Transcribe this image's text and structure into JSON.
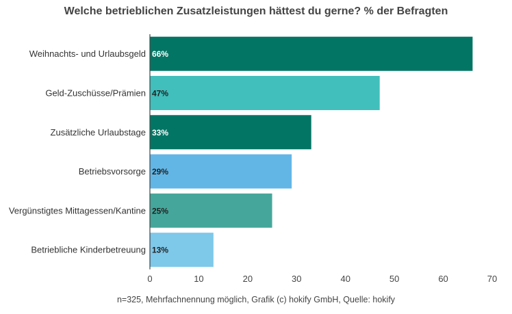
{
  "chart_data": {
    "type": "bar",
    "orientation": "horizontal",
    "title": "Welche betrieblichen Zusatzleistungen hättest du gerne? % der Befragten",
    "categories": [
      "Weihnachts- und Urlaubsgeld",
      "Geld-Zuschüsse/Prämien",
      "Zusätzliche Urlaubstage",
      "Betriebsvorsorge",
      "Vergünstigtes Mittagessen/Kantine",
      "Betriebliche Kinderbetreuung"
    ],
    "values": [
      66,
      47,
      33,
      29,
      25,
      13
    ],
    "data_labels": [
      "66%",
      "47%",
      "33%",
      "29%",
      "25%",
      "13%"
    ],
    "bar_colors": [
      "#037565",
      "#40BFBC",
      "#037565",
      "#62B6E6",
      "#45A79B",
      "#7EC8EA"
    ],
    "label_colors": [
      "#ffffff",
      "#222222",
      "#ffffff",
      "#222222",
      "#222222",
      "#222222"
    ],
    "xlim": [
      0,
      70
    ],
    "xticks": [
      "0",
      "10",
      "20",
      "30",
      "40",
      "50",
      "60",
      "70"
    ],
    "xlabel": "",
    "ylabel": "",
    "grid": false,
    "footnote": "n=325, Mehrfachnennung möglich, Grafik (c) hokify GmbH, Quelle: hokify"
  }
}
